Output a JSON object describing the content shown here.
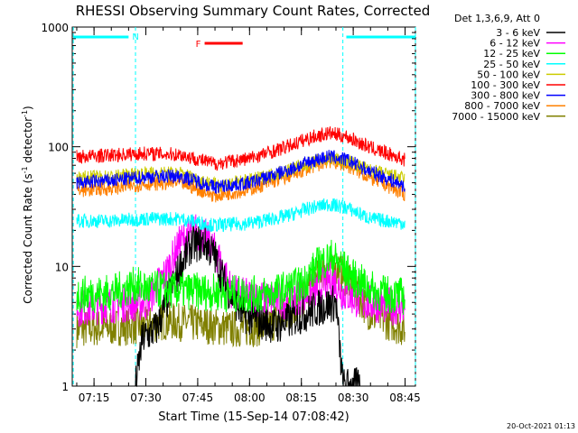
{
  "chart_data": {
    "type": "line",
    "title": "RHESSI Observing Summary Count Rates, Corrected",
    "xlabel": "Start Time (15-Sep-14 07:08:42)",
    "ylabel": "Corrected Count Rate (s⁻¹ detector⁻¹)",
    "ylabel_parts": {
      "main": "Corrected Count Rate (s",
      "exp1": "-1",
      "mid": " detector",
      "exp2": "-1",
      "end": ")"
    },
    "timestamp": "20-Oct-2021 01:13",
    "yscale": "log",
    "ylim": [
      1,
      1000
    ],
    "xlim": [
      "07:08:42",
      "08:48:00"
    ],
    "x_ticks": [
      "07:15",
      "07:30",
      "07:45",
      "08:00",
      "08:15",
      "08:30",
      "08:45"
    ],
    "y_ticks": [
      "1",
      "10",
      "100",
      "1000"
    ],
    "legend_title": "Det 1,3,6,9, Att 0",
    "legend_placement": "right",
    "series": [
      {
        "name": "3 - 6 keV",
        "color": "#000000",
        "points": [
          [
            "07:27",
            1.0
          ],
          [
            "07:29",
            2.5
          ],
          [
            "07:33",
            3.0
          ],
          [
            "07:36",
            5.0
          ],
          [
            "07:40",
            10
          ],
          [
            "07:43",
            15
          ],
          [
            "07:47",
            16
          ],
          [
            "07:50",
            12
          ],
          [
            "07:53",
            7
          ],
          [
            "07:58",
            4
          ],
          [
            "08:03",
            3.5
          ],
          [
            "08:08",
            3.2
          ],
          [
            "08:14",
            3.8
          ],
          [
            "08:20",
            4.5
          ],
          [
            "08:25",
            5.0
          ],
          [
            "08:27",
            1.0
          ],
          [
            "08:32",
            1.0
          ]
        ]
      },
      {
        "name": "6 - 12 keV",
        "color": "#ff00ff",
        "points": [
          [
            "07:10",
            4.5
          ],
          [
            "07:20",
            4.8
          ],
          [
            "07:30",
            5.0
          ],
          [
            "07:36",
            9
          ],
          [
            "07:40",
            16
          ],
          [
            "07:44",
            20
          ],
          [
            "07:47",
            18
          ],
          [
            "07:51",
            12
          ],
          [
            "07:55",
            6
          ],
          [
            "08:00",
            5.5
          ],
          [
            "08:10",
            5.2
          ],
          [
            "08:18",
            6
          ],
          [
            "08:24",
            8
          ],
          [
            "08:27",
            6
          ],
          [
            "08:33",
            5
          ],
          [
            "08:45",
            4.5
          ]
        ]
      },
      {
        "name": "12 - 25 keV",
        "color": "#00ff00",
        "points": [
          [
            "07:10",
            5.8
          ],
          [
            "07:20",
            6.0
          ],
          [
            "07:27",
            7.0
          ],
          [
            "07:30",
            6.5
          ],
          [
            "07:38",
            6.3
          ],
          [
            "07:45",
            6.2
          ],
          [
            "07:55",
            5.9
          ],
          [
            "08:05",
            5.8
          ],
          [
            "08:15",
            7
          ],
          [
            "08:20",
            10.5
          ],
          [
            "08:24",
            12
          ],
          [
            "08:30",
            8
          ],
          [
            "08:37",
            6
          ],
          [
            "08:45",
            5.6
          ]
        ]
      },
      {
        "name": "25 - 50 keV",
        "color": "#00ffff",
        "points": [
          [
            "07:10",
            24
          ],
          [
            "07:20",
            24
          ],
          [
            "07:30",
            25
          ],
          [
            "07:40",
            25
          ],
          [
            "07:50",
            22
          ],
          [
            "08:00",
            23
          ],
          [
            "08:10",
            26
          ],
          [
            "08:18",
            31
          ],
          [
            "08:23",
            33
          ],
          [
            "08:28",
            31
          ],
          [
            "08:35",
            25
          ],
          [
            "08:45",
            23
          ]
        ]
      },
      {
        "name": "50 - 100 keV",
        "color": "#cccc00",
        "points": [
          [
            "07:10",
            55
          ],
          [
            "07:20",
            56
          ],
          [
            "07:30",
            60
          ],
          [
            "07:40",
            60
          ],
          [
            "07:50",
            48
          ],
          [
            "08:00",
            52
          ],
          [
            "08:10",
            62
          ],
          [
            "08:18",
            74
          ],
          [
            "08:23",
            80
          ],
          [
            "08:28",
            76
          ],
          [
            "08:35",
            63
          ],
          [
            "08:45",
            54
          ]
        ]
      },
      {
        "name": "100 - 300 keV",
        "color": "#ff0000",
        "points": [
          [
            "07:10",
            82
          ],
          [
            "07:20",
            85
          ],
          [
            "07:30",
            88
          ],
          [
            "07:40",
            86
          ],
          [
            "07:50",
            72
          ],
          [
            "08:00",
            80
          ],
          [
            "08:10",
            98
          ],
          [
            "08:18",
            120
          ],
          [
            "08:23",
            130
          ],
          [
            "08:28",
            122
          ],
          [
            "08:35",
            98
          ],
          [
            "08:45",
            78
          ]
        ]
      },
      {
        "name": "300 - 800 keV",
        "color": "#0000ff",
        "points": [
          [
            "07:10",
            50
          ],
          [
            "07:20",
            52
          ],
          [
            "07:30",
            56
          ],
          [
            "07:40",
            57
          ],
          [
            "07:50",
            46
          ],
          [
            "08:00",
            50
          ],
          [
            "08:10",
            62
          ],
          [
            "08:18",
            76
          ],
          [
            "08:23",
            83
          ],
          [
            "08:28",
            78
          ],
          [
            "08:35",
            62
          ],
          [
            "08:45",
            47
          ]
        ]
      },
      {
        "name": "800 - 7000 keV",
        "color": "#ff8000",
        "points": [
          [
            "07:10",
            43
          ],
          [
            "07:20",
            45
          ],
          [
            "07:30",
            49
          ],
          [
            "07:40",
            50
          ],
          [
            "07:50",
            39
          ],
          [
            "08:00",
            44
          ],
          [
            "08:10",
            55
          ],
          [
            "08:18",
            68
          ],
          [
            "08:23",
            76
          ],
          [
            "08:28",
            70
          ],
          [
            "08:35",
            55
          ],
          [
            "08:45",
            40
          ]
        ]
      },
      {
        "name": "7000 - 15000 keV",
        "color": "#808000",
        "points": [
          [
            "07:10",
            3.0
          ],
          [
            "07:20",
            3.1
          ],
          [
            "07:30",
            3.2
          ],
          [
            "07:36",
            3.5
          ],
          [
            "07:45",
            3.3
          ],
          [
            "07:55",
            3.0
          ],
          [
            "08:05",
            3.1
          ],
          [
            "08:15",
            5
          ],
          [
            "08:20",
            9
          ],
          [
            "08:24",
            10
          ],
          [
            "08:28",
            8
          ],
          [
            "08:35",
            4
          ],
          [
            "08:45",
            3.0
          ]
        ]
      }
    ],
    "annotations": [
      {
        "label": "N",
        "color": "#00ffff",
        "start": "07:09",
        "end": "07:25"
      },
      {
        "label": "",
        "color": "#00ffff",
        "start": "08:28",
        "end": "08:48"
      },
      {
        "label": "F",
        "color": "#ff0000",
        "start": "07:47",
        "end": "07:58"
      }
    ],
    "vlines": [
      "07:09",
      "07:27",
      "08:27",
      "08:48"
    ]
  }
}
